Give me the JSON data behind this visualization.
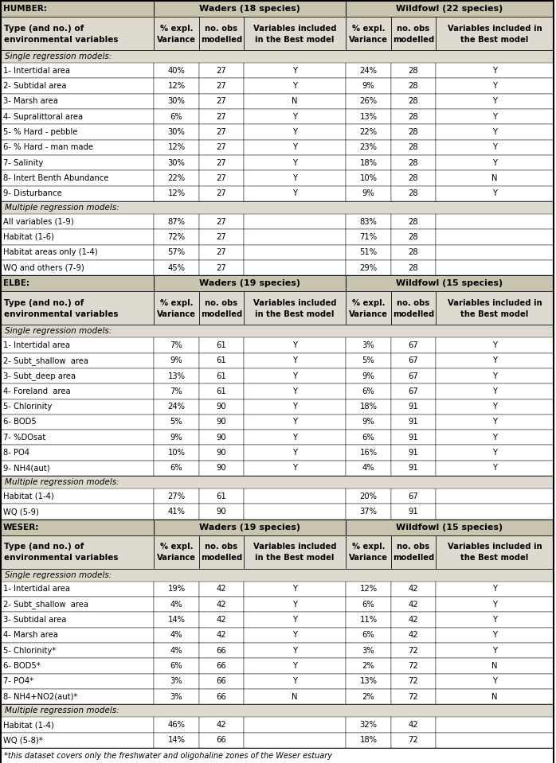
{
  "bg_color": "#dedad0",
  "header_bg": "#c8c4b0",
  "white_bg": "#ffffff",
  "border_color": "#000000",
  "sections": [
    {
      "estuary": "HUMBER:",
      "waders_label": "Waders (18 species)",
      "wildfowl_label": "Wildfowl (22 species)",
      "single_label": "Single regression models:",
      "single_rows": [
        [
          "1- Intertidal area",
          "40%",
          "27",
          "Y",
          "24%",
          "28",
          "Y"
        ],
        [
          "2- Subtidal area",
          "12%",
          "27",
          "Y",
          "9%",
          "28",
          "Y"
        ],
        [
          "3- Marsh area",
          "30%",
          "27",
          "N",
          "26%",
          "28",
          "Y"
        ],
        [
          "4- Supralittoral area",
          "6%",
          "27",
          "Y",
          "13%",
          "28",
          "Y"
        ],
        [
          "5- % Hard - pebble",
          "30%",
          "27",
          "Y",
          "22%",
          "28",
          "Y"
        ],
        [
          "6- % Hard - man made",
          "12%",
          "27",
          "Y",
          "23%",
          "28",
          "Y"
        ],
        [
          "7- Salinity",
          "30%",
          "27",
          "Y",
          "18%",
          "28",
          "Y"
        ],
        [
          "8- Intert Benth Abundance",
          "22%",
          "27",
          "Y",
          "10%",
          "28",
          "N"
        ],
        [
          "9- Disturbance",
          "12%",
          "27",
          "Y",
          "9%",
          "28",
          "Y"
        ]
      ],
      "multiple_label": "Multiple regression models:",
      "multiple_rows": [
        [
          "All variables (1-9)",
          "87%",
          "27",
          "",
          "83%",
          "28",
          ""
        ],
        [
          "Habitat (1-6)",
          "72%",
          "27",
          "",
          "71%",
          "28",
          ""
        ],
        [
          "Habitat areas only (1-4)",
          "57%",
          "27",
          "",
          "51%",
          "28",
          ""
        ],
        [
          "WQ and others (7-9)",
          "45%",
          "27",
          "",
          "29%",
          "28",
          ""
        ]
      ]
    },
    {
      "estuary": "ELBE:",
      "waders_label": "Waders (19 species)",
      "wildfowl_label": "Wildfowl (15 species)",
      "single_label": "Single regression models:",
      "single_rows": [
        [
          "1- Intertidal area",
          "7%",
          "61",
          "Y",
          "3%",
          "67",
          "Y"
        ],
        [
          "2- Subt_shallow  area",
          "9%",
          "61",
          "Y",
          "5%",
          "67",
          "Y"
        ],
        [
          "3- Subt_deep area",
          "13%",
          "61",
          "Y",
          "9%",
          "67",
          "Y"
        ],
        [
          "4- Foreland  area",
          "7%",
          "61",
          "Y",
          "6%",
          "67",
          "Y"
        ],
        [
          "5- Chlorinity",
          "24%",
          "90",
          "Y",
          "18%",
          "91",
          "Y"
        ],
        [
          "6- BOD5",
          "5%",
          "90",
          "Y",
          "9%",
          "91",
          "Y"
        ],
        [
          "7- %DOsat",
          "9%",
          "90",
          "Y",
          "6%",
          "91",
          "Y"
        ],
        [
          "8- PO4",
          "10%",
          "90",
          "Y",
          "16%",
          "91",
          "Y"
        ],
        [
          "9- NH4(aut)",
          "6%",
          "90",
          "Y",
          "4%",
          "91",
          "Y"
        ]
      ],
      "multiple_label": "Multiple regression models:",
      "multiple_rows": [
        [
          "Habitat (1-4)",
          "27%",
          "61",
          "",
          "20%",
          "67",
          ""
        ],
        [
          "WQ (5-9)",
          "41%",
          "90",
          "",
          "37%",
          "91",
          ""
        ]
      ]
    },
    {
      "estuary": "WESER:",
      "waders_label": "Waders (19 species)",
      "wildfowl_label": "Wildfowl (15 species)",
      "single_label": "Single regression models:",
      "single_rows": [
        [
          "1- Intertidal area",
          "19%",
          "42",
          "Y",
          "12%",
          "42",
          "Y"
        ],
        [
          "2- Subt_shallow  area",
          "4%",
          "42",
          "Y",
          "6%",
          "42",
          "Y"
        ],
        [
          "3- Subtidal area",
          "14%",
          "42",
          "Y",
          "11%",
          "42",
          "Y"
        ],
        [
          "4- Marsh area",
          "4%",
          "42",
          "Y",
          "6%",
          "42",
          "Y"
        ],
        [
          "5- Chlorinity*",
          "4%",
          "66",
          "Y",
          "3%",
          "72",
          "Y"
        ],
        [
          "6- BOD5*",
          "6%",
          "66",
          "Y",
          "2%",
          "72",
          "N"
        ],
        [
          "7- PO4*",
          "3%",
          "66",
          "Y",
          "13%",
          "72",
          "Y"
        ],
        [
          "8- NH4+NO2(aut)*",
          "3%",
          "66",
          "N",
          "2%",
          "72",
          "N"
        ]
      ],
      "multiple_label": "Multiple regression models:",
      "multiple_rows": [
        [
          "Habitat (1-4)",
          "46%",
          "42",
          "",
          "32%",
          "42",
          ""
        ],
        [
          "WQ (5-8)*",
          "14%",
          "66",
          "",
          "18%",
          "72",
          ""
        ]
      ]
    }
  ],
  "footnote": "*this dataset covers only the freshwater and oligohaline zones of the Weser estuary",
  "col_header_left_line1": "Type (and no.) of",
  "col_header_left_line2": "environmental variables",
  "col_headers_right": [
    [
      "% expl.",
      "Variance"
    ],
    [
      "no. obs",
      "modelled"
    ],
    [
      "Variables included",
      "in the Best model"
    ],
    [
      "% expl.",
      "Variance"
    ],
    [
      "no. obs",
      "modelled"
    ],
    [
      "Variables included in",
      "the Best model"
    ]
  ]
}
